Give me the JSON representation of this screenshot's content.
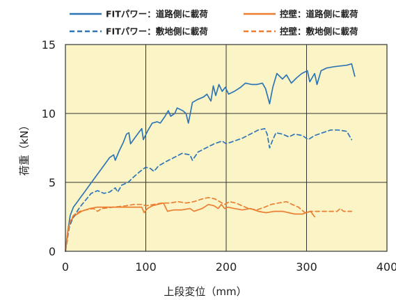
{
  "chart_data": {
    "type": "line",
    "xlabel": "上段変位（mm）",
    "ylabel": "荷重（kN）",
    "xlim": [
      0,
      400
    ],
    "ylim": [
      0,
      15
    ],
    "xticks": [
      0,
      100,
      200,
      300,
      400
    ],
    "yticks": [
      0,
      5,
      10,
      15
    ],
    "grid": true,
    "legend": "top",
    "plot_bg": "#fbf4c6",
    "series": [
      {
        "name": "FITパワー：道路側に載荷",
        "color": "#2e75b6",
        "dash": "solid",
        "points": [
          [
            0,
            0
          ],
          [
            3,
            1.5
          ],
          [
            6,
            2.6
          ],
          [
            10,
            3.2
          ],
          [
            15,
            3.6
          ],
          [
            25,
            4.4
          ],
          [
            35,
            5.2
          ],
          [
            45,
            6.0
          ],
          [
            55,
            6.8
          ],
          [
            60,
            7.0
          ],
          [
            62,
            6.6
          ],
          [
            67,
            7.3
          ],
          [
            72,
            7.9
          ],
          [
            76,
            8.5
          ],
          [
            79,
            8.6
          ],
          [
            81,
            7.8
          ],
          [
            86,
            8.2
          ],
          [
            91,
            8.6
          ],
          [
            95,
            8.9
          ],
          [
            97,
            8.1
          ],
          [
            102,
            8.7
          ],
          [
            108,
            9.3
          ],
          [
            114,
            9.4
          ],
          [
            118,
            9.3
          ],
          [
            124,
            9.8
          ],
          [
            128,
            10.2
          ],
          [
            131,
            9.8
          ],
          [
            136,
            10.0
          ],
          [
            139,
            10.4
          ],
          [
            146,
            10.2
          ],
          [
            150,
            10.0
          ],
          [
            153,
            9.3
          ],
          [
            158,
            10.8
          ],
          [
            164,
            11.0
          ],
          [
            172,
            11.2
          ],
          [
            176,
            11.4
          ],
          [
            181,
            10.9
          ],
          [
            184,
            12.0
          ],
          [
            187,
            11.3
          ],
          [
            191,
            12.1
          ],
          [
            195,
            11.6
          ],
          [
            199,
            11.9
          ],
          [
            203,
            11.4
          ],
          [
            210,
            11.6
          ],
          [
            218,
            11.9
          ],
          [
            224,
            12.2
          ],
          [
            232,
            12.1
          ],
          [
            238,
            12.1
          ],
          [
            245,
            12.2
          ],
          [
            249,
            11.8
          ],
          [
            254,
            10.7
          ],
          [
            258,
            11.9
          ],
          [
            263,
            12.9
          ],
          [
            270,
            12.5
          ],
          [
            275,
            12.8
          ],
          [
            281,
            12.2
          ],
          [
            288,
            12.6
          ],
          [
            294,
            12.9
          ],
          [
            301,
            13.1
          ],
          [
            304,
            12.3
          ],
          [
            310,
            12.9
          ],
          [
            313,
            12.1
          ],
          [
            318,
            13.1
          ],
          [
            325,
            13.3
          ],
          [
            335,
            13.4
          ],
          [
            350,
            13.5
          ],
          [
            356,
            13.6
          ],
          [
            360,
            12.7
          ]
        ]
      },
      {
        "name": "控壁：道路側に載荷",
        "color": "#ed7d31",
        "dash": "solid",
        "points": [
          [
            0,
            0
          ],
          [
            3,
            1.5
          ],
          [
            6,
            2.2
          ],
          [
            12,
            2.6
          ],
          [
            20,
            2.9
          ],
          [
            30,
            3.1
          ],
          [
            40,
            3.2
          ],
          [
            60,
            3.2
          ],
          [
            80,
            3.2
          ],
          [
            95,
            3.2
          ],
          [
            98,
            2.8
          ],
          [
            102,
            3.1
          ],
          [
            108,
            3.3
          ],
          [
            115,
            3.4
          ],
          [
            122,
            3.5
          ],
          [
            127,
            2.9
          ],
          [
            135,
            3.0
          ],
          [
            145,
            3.0
          ],
          [
            155,
            3.1
          ],
          [
            160,
            2.9
          ],
          [
            170,
            3.1
          ],
          [
            178,
            3.4
          ],
          [
            185,
            3.3
          ],
          [
            190,
            3.1
          ],
          [
            194,
            3.4
          ],
          [
            198,
            3.1
          ],
          [
            202,
            3.2
          ],
          [
            210,
            3.1
          ],
          [
            220,
            3.0
          ],
          [
            230,
            3.1
          ],
          [
            240,
            2.9
          ],
          [
            250,
            2.8
          ],
          [
            260,
            2.9
          ],
          [
            270,
            2.9
          ],
          [
            285,
            2.7
          ],
          [
            295,
            2.7
          ],
          [
            305,
            2.9
          ],
          [
            310,
            2.5
          ]
        ]
      },
      {
        "name": "FITパワー：敷地側に載荷",
        "color": "#2e75b6",
        "dash": "dashed",
        "points": [
          [
            0,
            0
          ],
          [
            5,
            1.8
          ],
          [
            10,
            2.5
          ],
          [
            18,
            3.2
          ],
          [
            25,
            3.7
          ],
          [
            32,
            4.2
          ],
          [
            40,
            4.4
          ],
          [
            48,
            4.2
          ],
          [
            55,
            4.3
          ],
          [
            62,
            4.6
          ],
          [
            65,
            4.3
          ],
          [
            70,
            4.8
          ],
          [
            78,
            5.0
          ],
          [
            85,
            5.4
          ],
          [
            93,
            5.8
          ],
          [
            100,
            6.1
          ],
          [
            106,
            6.0
          ],
          [
            110,
            5.8
          ],
          [
            116,
            6.2
          ],
          [
            125,
            6.5
          ],
          [
            135,
            6.8
          ],
          [
            145,
            7.1
          ],
          [
            155,
            7.0
          ],
          [
            158,
            6.6
          ],
          [
            165,
            7.2
          ],
          [
            175,
            7.5
          ],
          [
            185,
            7.8
          ],
          [
            195,
            8.0
          ],
          [
            200,
            7.8
          ],
          [
            210,
            8.0
          ],
          [
            220,
            8.2
          ],
          [
            230,
            8.5
          ],
          [
            240,
            8.8
          ],
          [
            248,
            8.9
          ],
          [
            251,
            8.5
          ],
          [
            254,
            7.5
          ],
          [
            258,
            8.1
          ],
          [
            262,
            8.6
          ],
          [
            270,
            8.5
          ],
          [
            278,
            8.3
          ],
          [
            285,
            8.5
          ],
          [
            295,
            8.4
          ],
          [
            302,
            8.1
          ],
          [
            310,
            8.4
          ],
          [
            320,
            8.6
          ],
          [
            330,
            8.8
          ],
          [
            340,
            8.8
          ],
          [
            350,
            8.7
          ],
          [
            356,
            8.1
          ]
        ]
      },
      {
        "name": "控壁：敷地側に載荷",
        "color": "#ed7d31",
        "dash": "dashed",
        "points": [
          [
            0,
            0
          ],
          [
            5,
            2.0
          ],
          [
            10,
            2.6
          ],
          [
            18,
            2.9
          ],
          [
            25,
            3.0
          ],
          [
            35,
            3.1
          ],
          [
            40,
            2.9
          ],
          [
            45,
            3.1
          ],
          [
            60,
            3.2
          ],
          [
            75,
            3.3
          ],
          [
            85,
            3.4
          ],
          [
            95,
            3.4
          ],
          [
            100,
            3.3
          ],
          [
            110,
            3.4
          ],
          [
            120,
            3.5
          ],
          [
            130,
            3.5
          ],
          [
            140,
            3.6
          ],
          [
            150,
            3.5
          ],
          [
            160,
            3.6
          ],
          [
            170,
            3.8
          ],
          [
            178,
            3.9
          ],
          [
            186,
            3.8
          ],
          [
            192,
            3.6
          ],
          [
            198,
            3.4
          ],
          [
            204,
            3.6
          ],
          [
            212,
            3.5
          ],
          [
            220,
            3.3
          ],
          [
            228,
            3.1
          ],
          [
            238,
            3.0
          ],
          [
            248,
            3.2
          ],
          [
            256,
            3.4
          ],
          [
            265,
            3.5
          ],
          [
            275,
            3.6
          ],
          [
            282,
            3.4
          ],
          [
            290,
            3.2
          ],
          [
            298,
            2.8
          ],
          [
            305,
            2.9
          ],
          [
            320,
            2.9
          ],
          [
            338,
            2.9
          ],
          [
            342,
            3.1
          ],
          [
            346,
            2.9
          ],
          [
            356,
            2.9
          ]
        ]
      }
    ]
  }
}
